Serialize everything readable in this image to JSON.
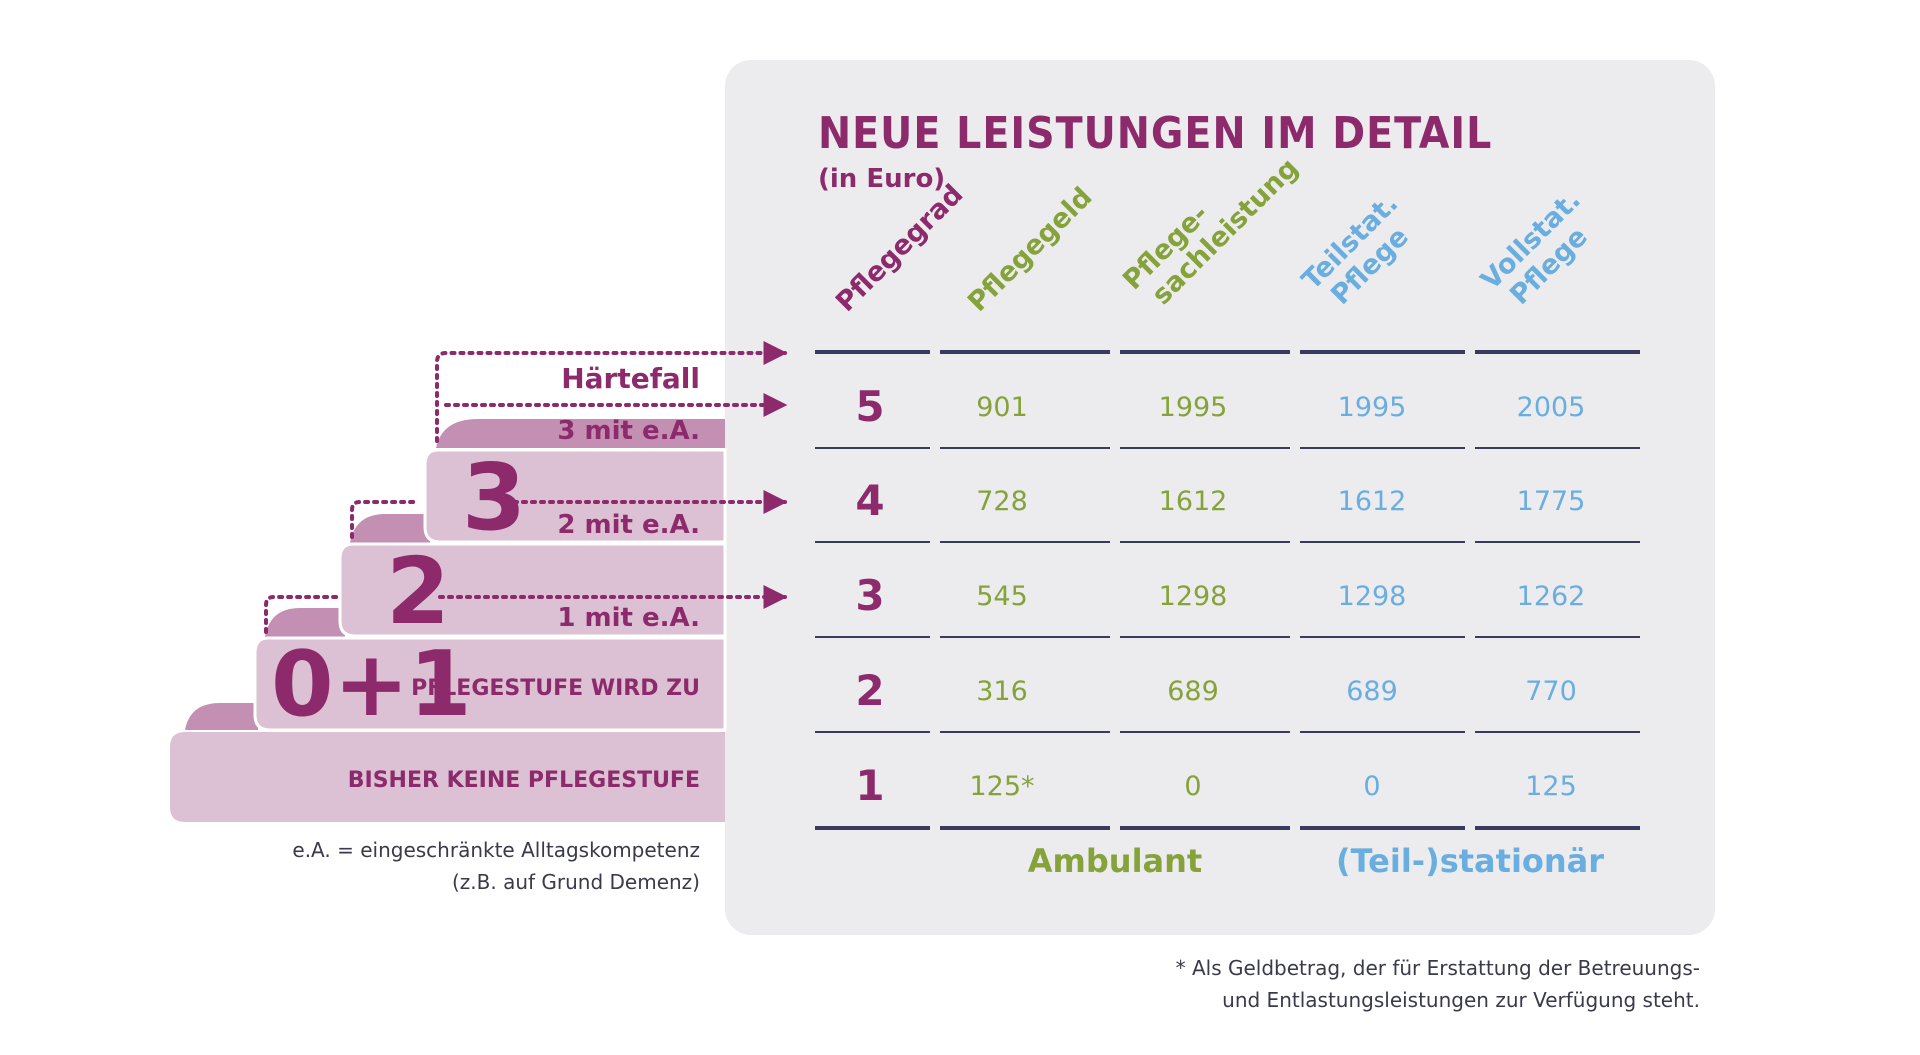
{
  "title": "NEUE LEISTUNGEN IM DETAIL",
  "subtitle": "(in Euro)",
  "colors": {
    "purple": "#8c2a6c",
    "green": "#86a23a",
    "blue": "#6aaedf",
    "line": "#3a3a5c",
    "panel": "#ececef",
    "stair_light": "#dcc0d3",
    "stair_dark": "#c38fb3"
  },
  "chart_data": {
    "type": "table",
    "columns": [
      {
        "key": "pflegegrad",
        "lines": [
          "Pflegegrad"
        ],
        "color": "purple"
      },
      {
        "key": "pflegegeld",
        "lines": [
          "Pflegegeld"
        ],
        "color": "green"
      },
      {
        "key": "sachleistung",
        "lines": [
          "Pflege-",
          "sachleistung"
        ],
        "color": "green"
      },
      {
        "key": "teilstat",
        "lines": [
          "Teilstat.",
          "Pflege"
        ],
        "color": "blue"
      },
      {
        "key": "vollstat",
        "lines": [
          "Vollstat.",
          "Pflege"
        ],
        "color": "blue"
      }
    ],
    "rows": [
      {
        "grade": "5",
        "values": [
          "901",
          "1995",
          "1995",
          "2005"
        ]
      },
      {
        "grade": "4",
        "values": [
          "728",
          "1612",
          "1612",
          "1775"
        ]
      },
      {
        "grade": "3",
        "values": [
          "545",
          "1298",
          "1298",
          "1262"
        ]
      },
      {
        "grade": "2",
        "values": [
          "316",
          "689",
          "689",
          "770"
        ]
      },
      {
        "grade": "1",
        "values": [
          "125*",
          "0",
          "0",
          "125"
        ]
      }
    ],
    "groups": [
      {
        "label": "Ambulant",
        "color": "green"
      },
      {
        "label": "(Teil-)stationär",
        "color": "blue"
      }
    ]
  },
  "stairs": {
    "haertefall": "Härtefall",
    "stufe3_ea": "3 mit e.A.",
    "stufe3": "3",
    "stufe2_ea": "2 mit e.A.",
    "stufe2": "2",
    "stufe1_ea": "1 mit e.A.",
    "stufe01": "0+1",
    "wird_zu": "PFLEGESTUFE WIRD ZU",
    "keine": "BISHER KEINE PFLEGESTUFE"
  },
  "notes": {
    "ea_line1": "e.A. = eingeschränkte Alltagskompetenz",
    "ea_line2": "(z.B. auf Grund Demenz)",
    "footnote_line1": "* Als Geldbetrag, der für Erstattung der Betreuungs-",
    "footnote_line2": "und Entlastungsleistungen zur Verfügung steht."
  }
}
